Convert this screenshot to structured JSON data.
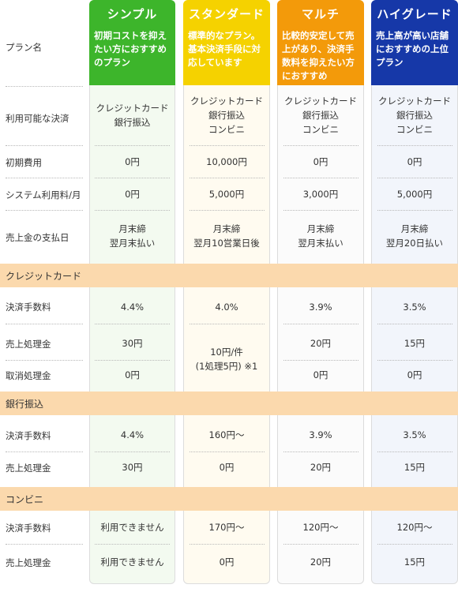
{
  "plan_label": "プラン名",
  "plans": [
    {
      "name": "シンプル",
      "desc": "初期コストを抑えたい方におすすめのプラン",
      "color": "#3db52b"
    },
    {
      "name": "スタンダード",
      "desc": "標準的なプラン。基本決済手段に対応しています",
      "color": "#f5d200"
    },
    {
      "name": "マルチ",
      "desc": "比較的安定して売上があり、決済手数料を抑えたい方におすすめ",
      "color": "#f39a0a"
    },
    {
      "name": "ハイグレード",
      "desc": "売上高が高い店舗におすすめの上位プラン",
      "color": "#1638a8"
    }
  ],
  "rows": {
    "methods": {
      "label": "利用可能な決済",
      "values": [
        "クレジットカード\n銀行振込",
        "クレジットカード\n銀行振込\nコンビニ",
        "クレジットカード\n銀行振込\nコンビニ",
        "クレジットカード\n銀行振込\nコンビニ"
      ]
    },
    "initial": {
      "label": "初期費用",
      "values": [
        "0円",
        "10,000円",
        "0円",
        "0円"
      ]
    },
    "system": {
      "label": "システム利用料/月",
      "values": [
        "0円",
        "5,000円",
        "3,000円",
        "5,000円"
      ]
    },
    "payout": {
      "label": "売上金の支払日",
      "values": [
        "月末締\n翌月末払い",
        "月末締\n翌月10営業日後",
        "月末締\n翌月末払い",
        "月末締\n翌月20日払い"
      ]
    }
  },
  "credit": {
    "section": "クレジットカード",
    "fee": {
      "label": "決済手数料",
      "values": [
        "4.4%",
        "4.0%",
        "3.9%",
        "3.5%"
      ]
    },
    "sales": {
      "label": "売上処理金",
      "values": [
        "30円",
        "20円",
        "15円"
      ]
    },
    "cancel": {
      "label": "取消処理金",
      "values": [
        "0円",
        "0円",
        "0円"
      ]
    },
    "standard_merged": "10円/件\n(1処理5円) ※1"
  },
  "bank": {
    "section": "銀行振込",
    "fee": {
      "label": "決済手数料",
      "values": [
        "4.4%",
        "160円〜",
        "3.9%",
        "3.5%"
      ]
    },
    "sales": {
      "label": "売上処理金",
      "values": [
        "30円",
        "0円",
        "20円",
        "15円"
      ]
    }
  },
  "conv": {
    "section": "コンビニ",
    "fee": {
      "label": "決済手数料",
      "values": [
        "利用できません",
        "170円〜",
        "120円〜",
        "120円〜"
      ]
    },
    "sales": {
      "label": "売上処理金",
      "values": [
        "利用できません",
        "0円",
        "20円",
        "15円"
      ]
    }
  }
}
